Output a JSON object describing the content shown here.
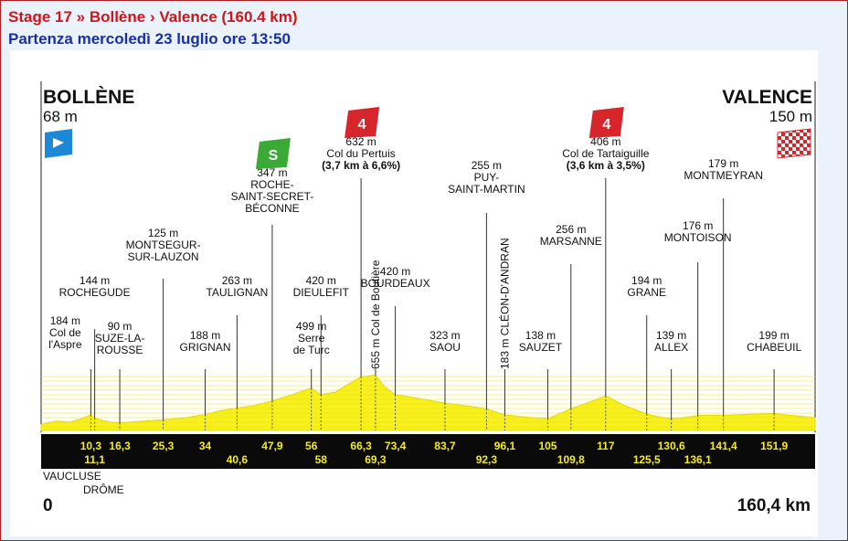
{
  "header": {
    "stage_title": "Stage 17 » Bollène › Valence (160.4 km)",
    "start_info": "Partenza mercoledì 23 luglio ore 13:50"
  },
  "colors": {
    "title_red": "#d0151b",
    "subtitle_blue": "#1a2ea8",
    "profile_fill": "#f7f01c",
    "km_band": "#0a0a0a",
    "km_text": "#f5ec1a",
    "climb_badge": "#d6262b",
    "sprint_badge": "#3aa935",
    "start_flag": "#1e88d8"
  },
  "chart_data": {
    "type": "area",
    "title": "",
    "xlabel": "",
    "ylabel": "",
    "x_range_km": [
      0,
      160.4
    ],
    "start": {
      "name": "BOLLÈNE",
      "altitude": "68 m",
      "km": "0"
    },
    "finish": {
      "name": "VALENCE",
      "altitude": "150 m",
      "km": "160,4 km"
    },
    "regions": [
      "VAUCLUSE",
      "DRÔME"
    ],
    "profile": [
      {
        "km": 0,
        "alt": 68
      },
      {
        "km": 3,
        "alt": 110
      },
      {
        "km": 6,
        "alt": 100
      },
      {
        "km": 8,
        "alt": 130
      },
      {
        "km": 10.3,
        "alt": 184
      },
      {
        "km": 11.1,
        "alt": 144
      },
      {
        "km": 14,
        "alt": 100
      },
      {
        "km": 16.3,
        "alt": 90
      },
      {
        "km": 20,
        "alt": 105
      },
      {
        "km": 25.3,
        "alt": 125
      },
      {
        "km": 30,
        "alt": 150
      },
      {
        "km": 34,
        "alt": 188
      },
      {
        "km": 37,
        "alt": 230
      },
      {
        "km": 40.6,
        "alt": 263
      },
      {
        "km": 44,
        "alt": 290
      },
      {
        "km": 47.9,
        "alt": 347
      },
      {
        "km": 52,
        "alt": 420
      },
      {
        "km": 56,
        "alt": 499
      },
      {
        "km": 58,
        "alt": 420
      },
      {
        "km": 61,
        "alt": 450
      },
      {
        "km": 63.5,
        "alt": 540
      },
      {
        "km": 66.3,
        "alt": 632
      },
      {
        "km": 67.8,
        "alt": 640
      },
      {
        "km": 69.3,
        "alt": 655
      },
      {
        "km": 71,
        "alt": 520
      },
      {
        "km": 73.4,
        "alt": 420
      },
      {
        "km": 78,
        "alt": 380
      },
      {
        "km": 83.7,
        "alt": 323
      },
      {
        "km": 88,
        "alt": 290
      },
      {
        "km": 92.3,
        "alt": 255
      },
      {
        "km": 94,
        "alt": 220
      },
      {
        "km": 96.1,
        "alt": 183
      },
      {
        "km": 100,
        "alt": 160
      },
      {
        "km": 105,
        "alt": 138
      },
      {
        "km": 107.5,
        "alt": 200
      },
      {
        "km": 109.8,
        "alt": 256
      },
      {
        "km": 113,
        "alt": 320
      },
      {
        "km": 117,
        "alt": 406
      },
      {
        "km": 121,
        "alt": 290
      },
      {
        "km": 125.5,
        "alt": 194
      },
      {
        "km": 128,
        "alt": 160
      },
      {
        "km": 130.6,
        "alt": 139
      },
      {
        "km": 133,
        "alt": 150
      },
      {
        "km": 136.1,
        "alt": 176
      },
      {
        "km": 138.5,
        "alt": 178
      },
      {
        "km": 141.4,
        "alt": 179
      },
      {
        "km": 147,
        "alt": 190
      },
      {
        "km": 151.9,
        "alt": 199
      },
      {
        "km": 156,
        "alt": 175
      },
      {
        "km": 160.4,
        "alt": 150
      }
    ],
    "waypoints": [
      {
        "km": 10.3,
        "km_label": "10,3",
        "row": "top",
        "lines": [
          "184 m",
          "Col de",
          "l'Aspre"
        ]
      },
      {
        "km": 11.1,
        "km_label": "11,1",
        "row": "bottom",
        "lines": [
          "144 m",
          "ROCHEGUDE"
        ]
      },
      {
        "km": 16.3,
        "km_label": "16,3",
        "row": "top",
        "lines": [
          "90 m",
          "SUZE-LA-",
          "ROUSSE"
        ]
      },
      {
        "km": 25.3,
        "km_label": "25,3",
        "row": "top",
        "lines": [
          "125 m",
          "MONTSEGUR-",
          "SUR-LAUZON"
        ]
      },
      {
        "km": 34,
        "km_label": "34",
        "row": "top",
        "lines": [
          "188 m",
          "GRIGNAN"
        ]
      },
      {
        "km": 40.6,
        "km_label": "40,6",
        "row": "bottom",
        "lines": [
          "263 m",
          "TAULIGNAN"
        ]
      },
      {
        "km": 47.9,
        "km_label": "47,9",
        "row": "top",
        "lines": [
          "347 m",
          "ROCHE-",
          "SAINT-SECRET-",
          "BÉCONNE"
        ],
        "badge": "S"
      },
      {
        "km": 56,
        "km_label": "56",
        "row": "top",
        "lines": [
          "499 m",
          "Serre",
          "de Turc"
        ]
      },
      {
        "km": 58,
        "km_label": "58",
        "row": "bottom",
        "lines": [
          "420 m",
          "DIEULEFIT"
        ]
      },
      {
        "km": 66.3,
        "km_label": "66,3",
        "row": "top",
        "lines": [
          "632 m",
          "Col du Pertuis",
          "(3,7 km à 6,6%)"
        ],
        "badge": "4"
      },
      {
        "km": 69.3,
        "km_label": "69,3",
        "row": "bottom",
        "lines": [],
        "vertical": "655 m Col de Boutière"
      },
      {
        "km": 73.4,
        "km_label": "73,4",
        "row": "top",
        "lines": [
          "420 m",
          "BOURDEAUX"
        ]
      },
      {
        "km": 83.7,
        "km_label": "83,7",
        "row": "top",
        "lines": [
          "323 m",
          "SAOU"
        ]
      },
      {
        "km": 92.3,
        "km_label": "92,3",
        "row": "bottom",
        "lines": [
          "255 m",
          "PUY-",
          "SAINT-MARTIN"
        ]
      },
      {
        "km": 96.1,
        "km_label": "96,1",
        "row": "top",
        "lines": [],
        "vertical": "183 m CLÉON-D'ANDRAN"
      },
      {
        "km": 105,
        "km_label": "105",
        "row": "top",
        "lines": [
          "138 m",
          "SAUZET"
        ]
      },
      {
        "km": 109.8,
        "km_label": "109,8",
        "row": "bottom",
        "lines": [
          "256 m",
          "MARSANNE"
        ]
      },
      {
        "km": 117,
        "km_label": "117",
        "row": "top",
        "lines": [
          "406 m",
          "Col de Tartaiguille",
          "(3,6 km à 3,5%)"
        ],
        "badge": "4"
      },
      {
        "km": 125.5,
        "km_label": "125,5",
        "row": "bottom",
        "lines": [
          "194 m",
          "GRANE"
        ]
      },
      {
        "km": 130.6,
        "km_label": "130,6",
        "row": "top",
        "lines": [
          "139 m",
          "ALLEX"
        ]
      },
      {
        "km": 136.1,
        "km_label": "136,1",
        "row": "bottom",
        "lines": [
          "176 m",
          "MONTOISON"
        ]
      },
      {
        "km": 141.4,
        "km_label": "141,4",
        "row": "top",
        "lines": [
          "179 m",
          "MONTMEYRAN"
        ]
      },
      {
        "km": 151.9,
        "km_label": "151,9",
        "row": "top",
        "lines": [
          "199 m",
          "CHABEUIL"
        ]
      }
    ]
  }
}
